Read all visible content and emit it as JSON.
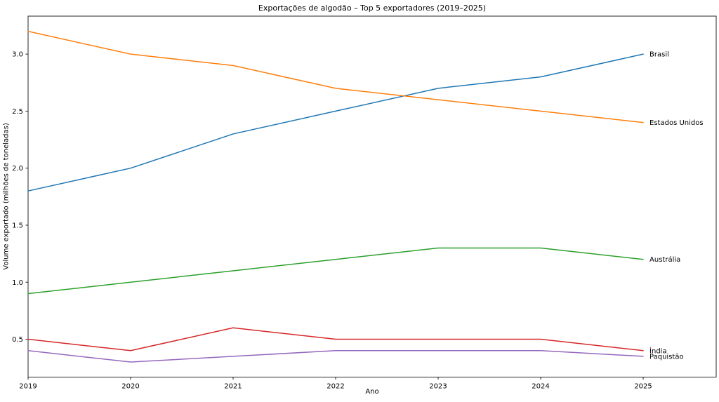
{
  "chart_data": {
    "type": "line",
    "title": "Exportações de algodão – Top 5 exportadores (2019–2025)",
    "xlabel": "Ano",
    "ylabel": "Volume exportado (milhões de toneladas)",
    "x": [
      2019,
      2020,
      2021,
      2022,
      2023,
      2024,
      2025
    ],
    "series": [
      {
        "name": "Brasil",
        "color": "#1f77b4",
        "values": [
          1.8,
          2.0,
          2.3,
          2.5,
          2.7,
          2.8,
          3.0
        ]
      },
      {
        "name": "Estados Unidos",
        "color": "#ff7f0e",
        "values": [
          3.2,
          3.0,
          2.9,
          2.7,
          2.6,
          2.5,
          2.4
        ]
      },
      {
        "name": "Austrália",
        "color": "#2ca02c",
        "values": [
          0.9,
          1.0,
          1.1,
          1.2,
          1.3,
          1.3,
          1.2
        ]
      },
      {
        "name": "Índia",
        "color": "#d62728",
        "values": [
          0.5,
          0.4,
          0.6,
          0.5,
          0.5,
          0.5,
          0.4
        ]
      },
      {
        "name": "Paquistão",
        "color": "#9467bd",
        "values": [
          0.4,
          0.3,
          0.35,
          0.4,
          0.4,
          0.4,
          0.35
        ]
      }
    ],
    "x_ticks": [
      2019,
      2020,
      2021,
      2022,
      2023,
      2024,
      2025
    ],
    "y_ticks": [
      0.5,
      1.0,
      1.5,
      2.0,
      2.5,
      3.0
    ],
    "xlim": [
      2019,
      2025.712
    ],
    "ylim": [
      0.168,
      3.333
    ],
    "grid": false,
    "legend_position": "line-end-labels",
    "axis_color": "#262626",
    "background": "#ffffff"
  }
}
